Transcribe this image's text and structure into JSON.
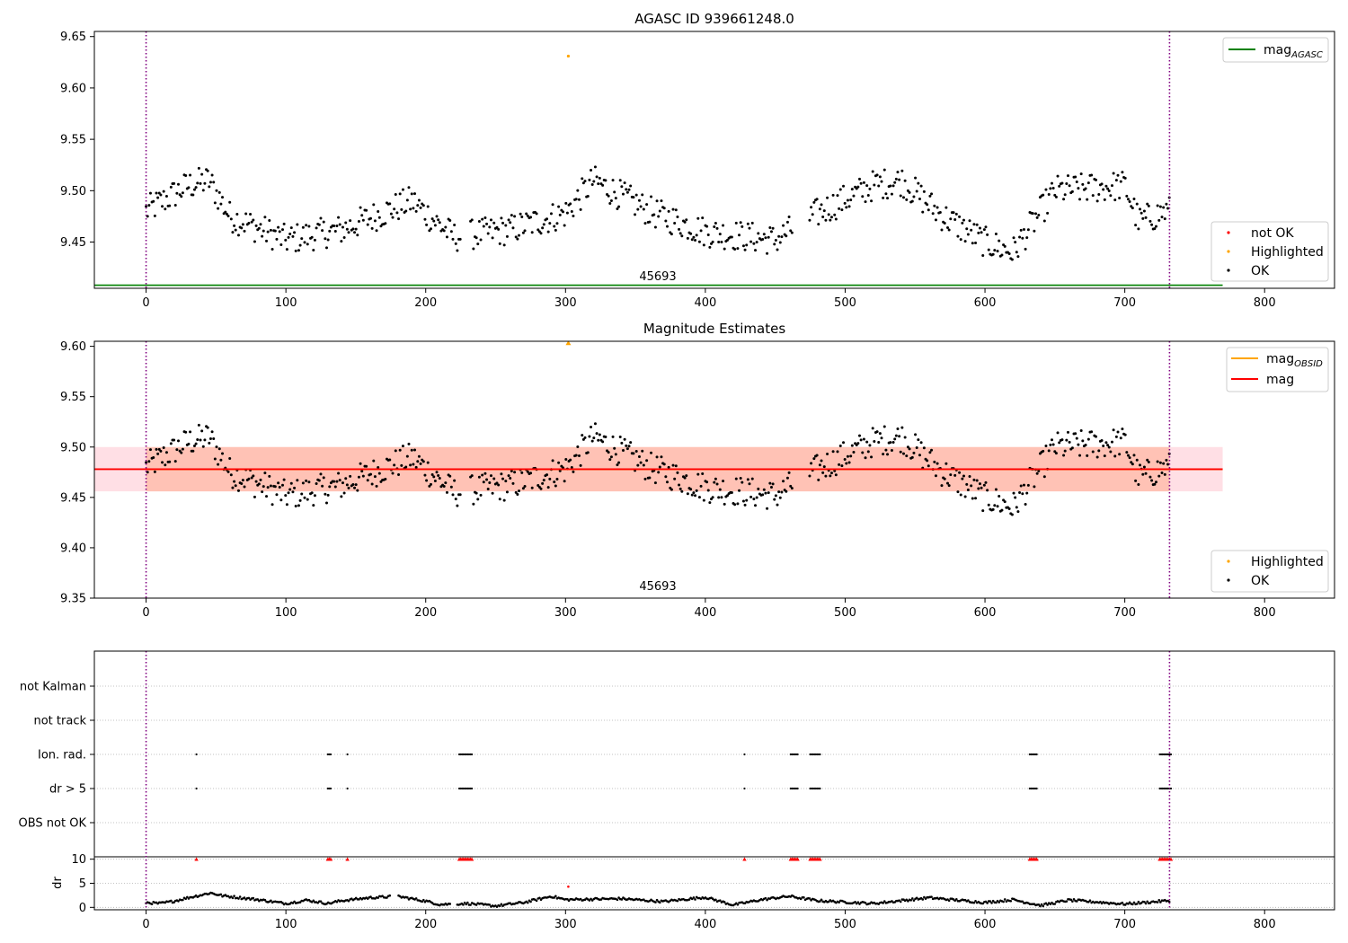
{
  "chart_data": [
    {
      "type": "scatter",
      "title": "AGASC ID 939661248.0",
      "xlim": [
        -37,
        850
      ],
      "ylim": [
        9.405,
        9.655
      ],
      "xticks": [
        "0",
        "100",
        "200",
        "300",
        "400",
        "500",
        "600",
        "700",
        "800"
      ],
      "yticks": [
        "9.45",
        "9.50",
        "9.55",
        "9.60",
        "9.65"
      ],
      "vlines": [
        0,
        732
      ],
      "hline": {
        "label": "mag_AGASC",
        "y": 9.408,
        "color": "#008000"
      },
      "annotation": {
        "text": "45693",
        "x": 366
      },
      "highlight": {
        "x": 302,
        "y": 9.631,
        "color": "#ffa500"
      },
      "legend_lines": [
        {
          "label": "mag",
          "sub": "AGASC",
          "color": "#008000"
        }
      ],
      "legend_points": [
        {
          "label": "not OK",
          "color": "#ff0000"
        },
        {
          "label": "Highlighted",
          "color": "#ffa500"
        },
        {
          "label": "OK",
          "color": "#000000"
        }
      ],
      "ok_series_knots": {
        "x": [
          0,
          30,
          45,
          60,
          100,
          140,
          190,
          220,
          260,
          300,
          320,
          360,
          400,
          450,
          480,
          520,
          540,
          570,
          600,
          620,
          650,
          700,
          710,
          730
        ],
        "y": [
          9.48,
          9.505,
          9.51,
          9.475,
          9.452,
          9.462,
          9.49,
          9.455,
          9.462,
          9.478,
          9.51,
          9.48,
          9.46,
          9.452,
          9.478,
          9.505,
          9.51,
          9.475,
          9.45,
          9.44,
          9.5,
          9.505,
          9.47,
          9.48
        ]
      }
    },
    {
      "type": "scatter",
      "title": "Magnitude Estimates",
      "xlim": [
        -37,
        850
      ],
      "ylim": [
        9.35,
        9.605
      ],
      "xticks": [
        "0",
        "100",
        "200",
        "300",
        "400",
        "500",
        "600",
        "700",
        "800"
      ],
      "yticks": [
        "9.35",
        "9.40",
        "9.45",
        "9.50",
        "9.55",
        "9.60"
      ],
      "vlines": [
        0,
        732
      ],
      "mag_line": {
        "y": 9.478,
        "x": [
          0,
          770
        ],
        "color": "#ff0000"
      },
      "band_outer": {
        "y": [
          9.456,
          9.5
        ],
        "x": [
          -37,
          770
        ],
        "color": "#ffc0cb"
      },
      "band_inner": {
        "y": [
          9.456,
          9.5
        ],
        "x": [
          0,
          732
        ],
        "color": "#ffa07a"
      },
      "annotation": {
        "text": "45693",
        "x": 366
      },
      "highlight": {
        "x": 302,
        "y": 9.603,
        "color": "#ffa500"
      },
      "legend_lines": [
        {
          "label": "mag",
          "sub": "OBSID",
          "color": "#ffa500"
        },
        {
          "label": "mag",
          "sub": "",
          "color": "#ff0000"
        }
      ],
      "legend_points": [
        {
          "label": "Highlighted",
          "color": "#ffa500"
        },
        {
          "label": "OK",
          "color": "#000000"
        }
      ]
    },
    {
      "type": "scatter",
      "title": "",
      "xlim": [
        -37,
        850
      ],
      "xticks": [
        "0",
        "100",
        "200",
        "300",
        "400",
        "500",
        "600",
        "700",
        "800"
      ],
      "flag_rows": [
        "not Kalman",
        "not track",
        "Ion. rad.",
        "dr > 5",
        "OBS not OK"
      ],
      "flag_x": [
        36,
        130,
        131,
        132,
        144,
        224,
        225,
        226,
        227,
        228,
        229,
        230,
        231,
        232,
        233,
        428,
        461,
        462,
        463,
        464,
        465,
        466,
        475,
        476,
        477,
        478,
        479,
        480,
        481,
        482,
        632,
        633,
        634,
        635,
        636,
        637,
        725,
        726,
        727,
        728,
        729,
        730,
        731,
        732,
        733
      ],
      "flag_marks_on": [
        "Ion. rad.",
        "dr > 5"
      ],
      "dr_ylabel": "dr",
      "dr_yticks": [
        "0",
        "5",
        "10"
      ],
      "dr_ylim": [
        -0.5,
        10.5
      ],
      "dr_outlier": {
        "x": 302,
        "y": 4.3
      },
      "dr_knots": {
        "x": [
          0,
          10,
          20,
          30,
          40,
          46,
          55,
          80,
          100,
          115,
          130,
          140,
          160,
          180,
          200,
          210,
          230,
          250,
          270,
          290,
          300,
          340,
          370,
          400,
          420,
          440,
          460,
          480,
          520,
          560,
          600,
          620,
          640,
          660,
          700,
          732
        ],
        "y": [
          1.0,
          0.8,
          1.3,
          2.0,
          2.6,
          3.0,
          2.4,
          1.6,
          0.8,
          1.5,
          0.8,
          1.4,
          2.0,
          2.3,
          1.3,
          0.6,
          0.8,
          0.3,
          1.0,
          2.3,
          1.6,
          1.8,
          1.2,
          2.1,
          0.5,
          1.6,
          2.3,
          1.4,
          0.8,
          2.0,
          1.0,
          1.6,
          0.4,
          1.5,
          0.7,
          1.4
        ]
      },
      "vlines": [
        0,
        732
      ]
    }
  ]
}
